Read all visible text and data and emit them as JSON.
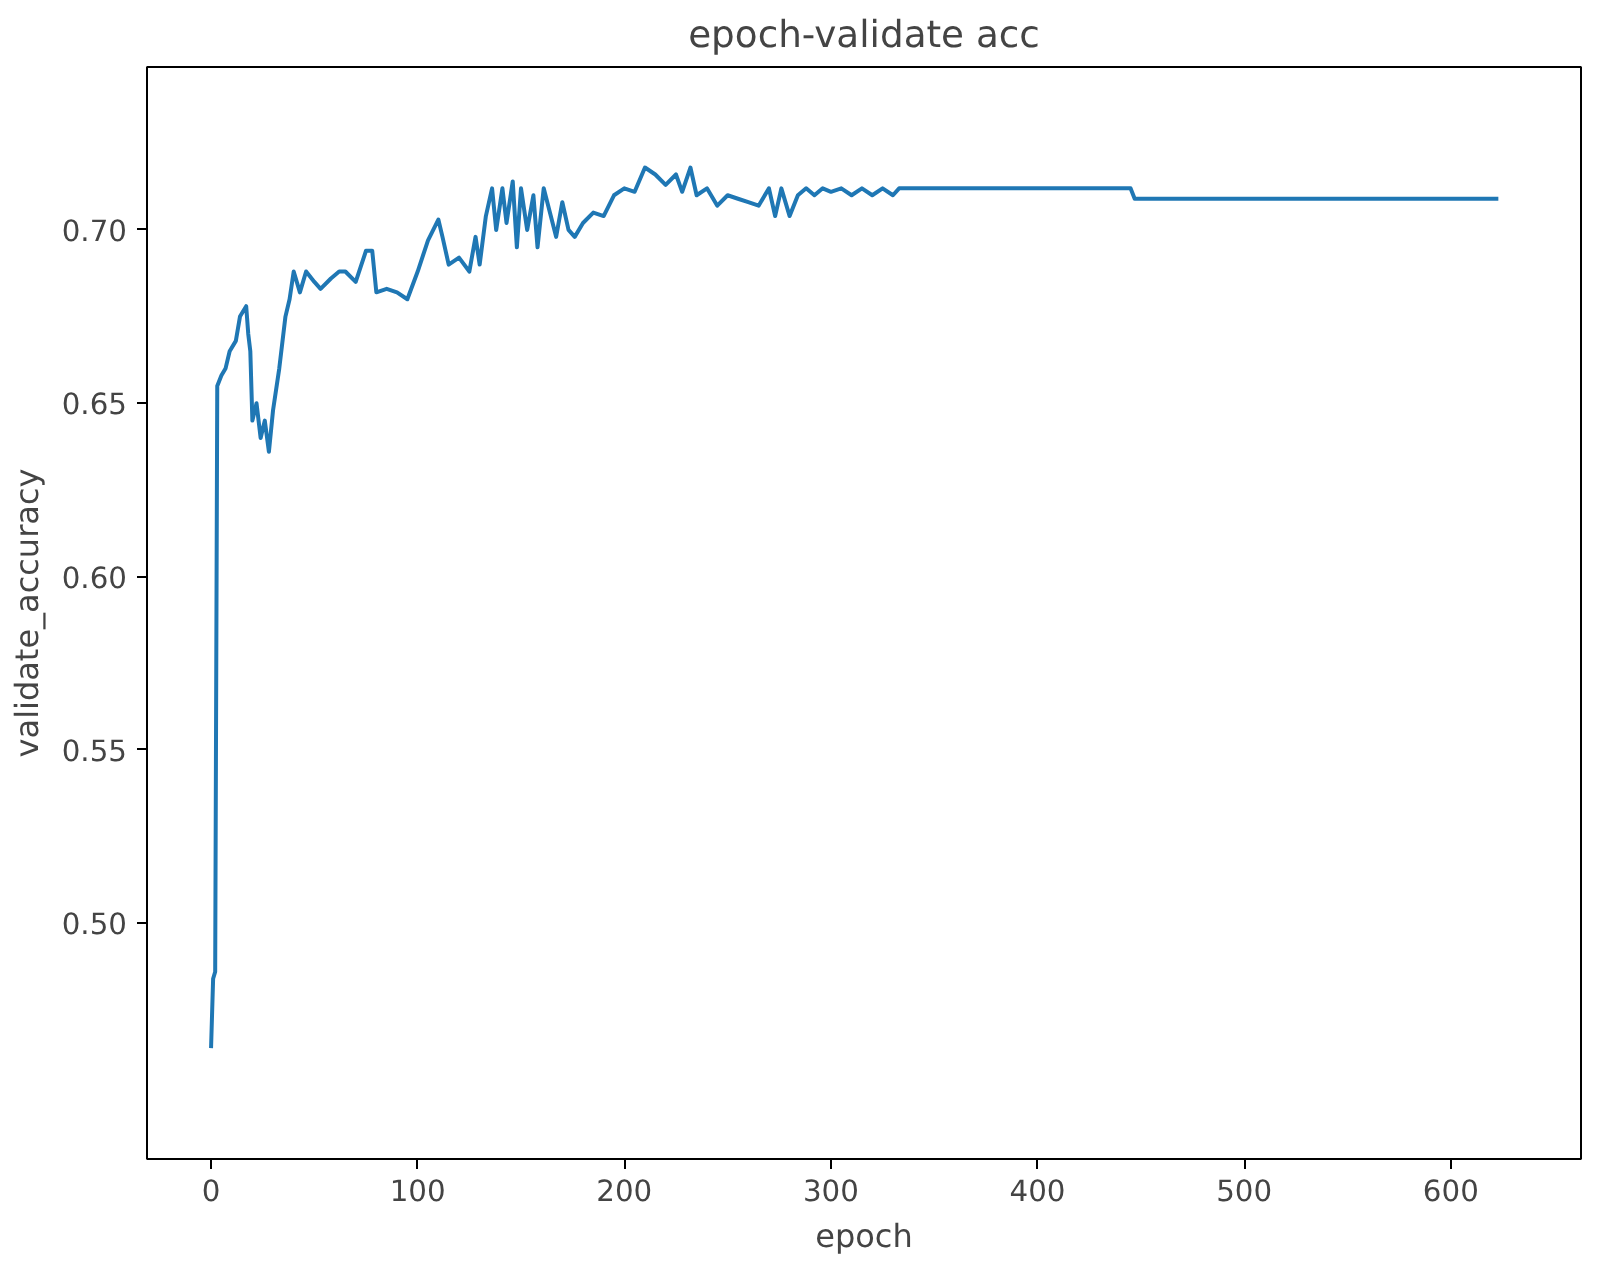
{
  "chart_data": {
    "type": "line",
    "title": "epoch-validate acc",
    "xlabel": "epoch",
    "ylabel": "validate_accuracy",
    "xlim": [
      -31,
      663
    ],
    "ylim": [
      0.432,
      0.747
    ],
    "xticks": [
      0,
      100,
      200,
      300,
      400,
      500,
      600
    ],
    "yticks": [
      {
        "value": 0.5,
        "label": "0.50"
      },
      {
        "value": 0.55,
        "label": "0.55"
      },
      {
        "value": 0.6,
        "label": "0.60"
      },
      {
        "value": 0.65,
        "label": "0.65"
      },
      {
        "value": 0.7,
        "label": "0.70"
      }
    ],
    "grid": false,
    "series": [
      {
        "color": "#1f77b4",
        "x": [
          0,
          1,
          2,
          3,
          5,
          7,
          9,
          12,
          14,
          17,
          18,
          19,
          20,
          22,
          24,
          26,
          28,
          30,
          33,
          36,
          38,
          40,
          43,
          46,
          50,
          53,
          58,
          62,
          65,
          70,
          75,
          78,
          80,
          85,
          90,
          95,
          100,
          105,
          110,
          112,
          115,
          120,
          125,
          128,
          130,
          133,
          136,
          138,
          141,
          143,
          146,
          148,
          150,
          153,
          156,
          158,
          161,
          164,
          167,
          170,
          173,
          176,
          180,
          185,
          190,
          195,
          200,
          205,
          210,
          215,
          220,
          225,
          228,
          232,
          235,
          240,
          245,
          250,
          255,
          260,
          265,
          270,
          273,
          276,
          280,
          284,
          288,
          292,
          296,
          300,
          305,
          310,
          315,
          320,
          325,
          330,
          333,
          445,
          447,
          623
        ],
        "values": [
          0.464,
          0.484,
          0.486,
          0.655,
          0.658,
          0.66,
          0.665,
          0.668,
          0.675,
          0.678,
          0.67,
          0.665,
          0.645,
          0.65,
          0.64,
          0.645,
          0.636,
          0.648,
          0.66,
          0.675,
          0.68,
          0.688,
          0.682,
          0.688,
          0.685,
          0.683,
          0.686,
          0.688,
          0.688,
          0.685,
          0.694,
          0.694,
          0.682,
          0.683,
          0.682,
          0.68,
          0.688,
          0.697,
          0.703,
          0.698,
          0.69,
          0.692,
          0.688,
          0.698,
          0.69,
          0.704,
          0.712,
          0.7,
          0.712,
          0.702,
          0.714,
          0.695,
          0.712,
          0.7,
          0.71,
          0.695,
          0.712,
          0.705,
          0.698,
          0.708,
          0.7,
          0.698,
          0.702,
          0.705,
          0.704,
          0.71,
          0.712,
          0.711,
          0.718,
          0.716,
          0.713,
          0.716,
          0.711,
          0.718,
          0.71,
          0.712,
          0.707,
          0.71,
          0.709,
          0.708,
          0.707,
          0.712,
          0.704,
          0.712,
          0.704,
          0.71,
          0.712,
          0.71,
          0.712,
          0.711,
          0.712,
          0.71,
          0.712,
          0.71,
          0.712,
          0.71,
          0.712,
          0.712,
          0.709,
          0.709
        ]
      }
    ]
  }
}
